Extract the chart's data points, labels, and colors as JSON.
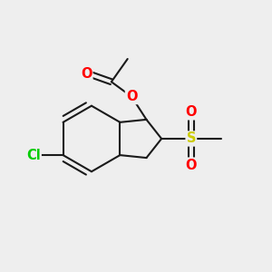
{
  "background_color": "#eeeeee",
  "bond_color": "#1a1a1a",
  "bond_width": 1.5,
  "atom_colors": {
    "O": "#ff0000",
    "S": "#cccc00",
    "Cl": "#00cc00",
    "C": "#1a1a1a"
  },
  "font_size_atom": 10.5
}
